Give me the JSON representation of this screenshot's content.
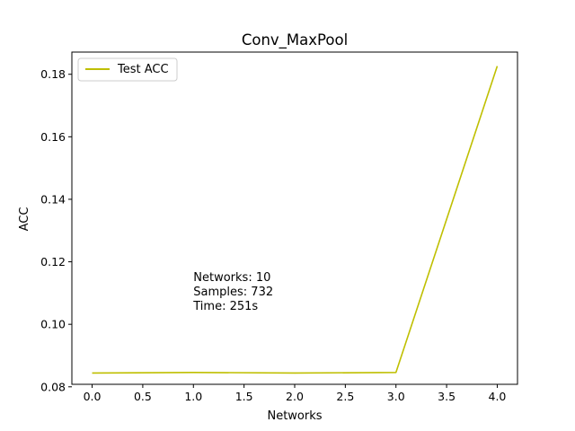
{
  "chart_data": {
    "type": "line",
    "title": "Conv_MaxPool",
    "xlabel": "Networks",
    "ylabel": "ACC",
    "x": [
      0,
      1,
      2,
      3,
      4
    ],
    "series": [
      {
        "name": "Test ACC",
        "color": "#bfbf00",
        "values": [
          0.0844,
          0.0846,
          0.0844,
          0.0846,
          0.1826
        ]
      }
    ],
    "xlim": [
      -0.2,
      4.2
    ],
    "ylim": [
      0.0808,
      0.1871
    ],
    "xticks": [
      0.0,
      0.5,
      1.0,
      1.5,
      2.0,
      2.5,
      3.0,
      3.5,
      4.0
    ],
    "xtick_labels": [
      "0.0",
      "0.5",
      "1.0",
      "1.5",
      "2.0",
      "2.5",
      "3.0",
      "3.5",
      "4.0"
    ],
    "yticks": [
      0.08,
      0.1,
      0.12,
      0.14,
      0.16,
      0.18
    ],
    "ytick_labels": [
      "0.08",
      "0.10",
      "0.12",
      "0.14",
      "0.16",
      "0.18"
    ],
    "grid": false,
    "legend_position": "top-left",
    "annotation": {
      "lines": [
        "Networks: 10",
        "Samples: 732",
        "Time: 251s"
      ],
      "x": 1.0,
      "y": 0.115
    }
  }
}
